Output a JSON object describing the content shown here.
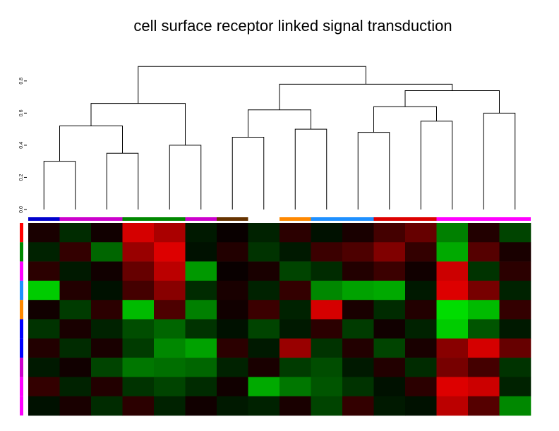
{
  "chart_data": {
    "type": "heatmap",
    "title": "cell surface receptor linked signal transduction",
    "ylim": [
      0,
      0.9
    ],
    "yticks": [
      {
        "value": 0,
        "label": "0.0"
      },
      0.2,
      0.4,
      0.6,
      0.8
    ],
    "dendrogram": {
      "color": "#000000",
      "merges": [
        [
          -1,
          -2,
          0.3
        ],
        [
          -3,
          -4,
          0.35
        ],
        [
          1,
          2,
          0.52
        ],
        [
          -5,
          -6,
          0.4
        ],
        [
          3,
          4,
          0.66
        ],
        [
          -7,
          -8,
          0.45
        ],
        [
          -9,
          -10,
          0.5
        ],
        [
          6,
          7,
          0.62
        ],
        [
          -11,
          -12,
          0.48
        ],
        [
          -13,
          -14,
          0.55
        ],
        [
          9,
          10,
          0.64
        ],
        [
          -15,
          -16,
          0.6
        ],
        [
          11,
          12,
          0.74
        ],
        [
          8,
          13,
          0.78
        ],
        [
          5,
          14,
          0.89
        ]
      ]
    },
    "column_groups": [
      {
        "color": "#0000cc",
        "count": 1
      },
      {
        "color": "#cc00cc",
        "count": 2
      },
      {
        "color": "#008800",
        "count": 2
      },
      {
        "color": "#cc00cc",
        "count": 1
      },
      {
        "color": "#663300",
        "count": 1
      },
      {
        "color": "#ffffff",
        "count": 1
      },
      {
        "color": "#ff8800",
        "count": 1
      },
      {
        "color": "#1e90ff",
        "count": 2
      },
      {
        "color": "#dd0000",
        "count": 2
      },
      {
        "color": "#ff00ff",
        "count": 3
      }
    ],
    "row_colors": [
      "#ff0000",
      "#008800",
      "#ff00ff",
      "#1e90ff",
      "#ff8800",
      "#0000ff",
      "#0000ff",
      "#cc00cc",
      "#ff00ff",
      "#ff00ff"
    ],
    "colors": {
      "low": "#00ff00",
      "mid": "#000000",
      "high": "#ff0000"
    },
    "vlim": [
      -3,
      3
    ],
    "heatmap": [
      [
        0.3,
        -0.5,
        0.2,
        2.5,
        2.0,
        -0.3,
        0.1,
        -0.4,
        0.5,
        -0.2,
        0.3,
        0.8,
        1.2,
        -1.5,
        0.4,
        -0.8
      ],
      [
        -0.4,
        0.6,
        -1.2,
        1.8,
        2.6,
        -0.2,
        0.4,
        -0.6,
        -0.3,
        0.7,
        0.9,
        1.5,
        0.6,
        -2.0,
        1.0,
        0.3
      ],
      [
        0.5,
        -0.3,
        0.2,
        1.2,
        2.2,
        -1.8,
        0.1,
        0.3,
        -0.8,
        -0.5,
        0.4,
        0.7,
        0.2,
        2.4,
        -0.6,
        0.5
      ],
      [
        -2.4,
        0.4,
        -0.2,
        0.8,
        1.6,
        -0.5,
        0.3,
        -0.4,
        0.6,
        -1.6,
        -1.9,
        -2.0,
        -0.3,
        2.6,
        1.4,
        -0.4
      ],
      [
        0.2,
        -0.7,
        0.5,
        -2.2,
        0.9,
        -1.5,
        0.2,
        0.7,
        -0.4,
        2.5,
        0.3,
        -0.5,
        0.4,
        -2.6,
        -2.2,
        0.6
      ],
      [
        -0.6,
        0.3,
        -0.4,
        -0.9,
        -1.2,
        -0.6,
        -0.2,
        -0.8,
        -0.3,
        0.5,
        -0.7,
        0.2,
        -0.4,
        -2.4,
        -1.0,
        -0.3
      ],
      [
        0.4,
        -0.5,
        0.3,
        -0.7,
        -1.6,
        -1.9,
        0.5,
        -0.3,
        1.8,
        -0.6,
        0.4,
        -0.8,
        0.3,
        1.6,
        2.5,
        1.2
      ],
      [
        -0.3,
        0.2,
        -0.8,
        -1.4,
        -1.3,
        -1.2,
        -0.4,
        0.3,
        -0.7,
        -0.9,
        -0.3,
        0.4,
        -0.5,
        1.4,
        0.8,
        -0.6
      ],
      [
        0.6,
        -0.4,
        0.4,
        -0.6,
        -0.8,
        -0.5,
        0.2,
        -2.0,
        -1.4,
        -1.0,
        -0.6,
        -0.2,
        0.5,
        2.6,
        2.4,
        -0.4
      ],
      [
        -0.2,
        0.3,
        -0.5,
        0.5,
        -0.4,
        0.2,
        -0.3,
        -0.4,
        0.3,
        -0.8,
        0.6,
        -0.3,
        -0.2,
        2.2,
        1.0,
        -1.6
      ]
    ]
  }
}
